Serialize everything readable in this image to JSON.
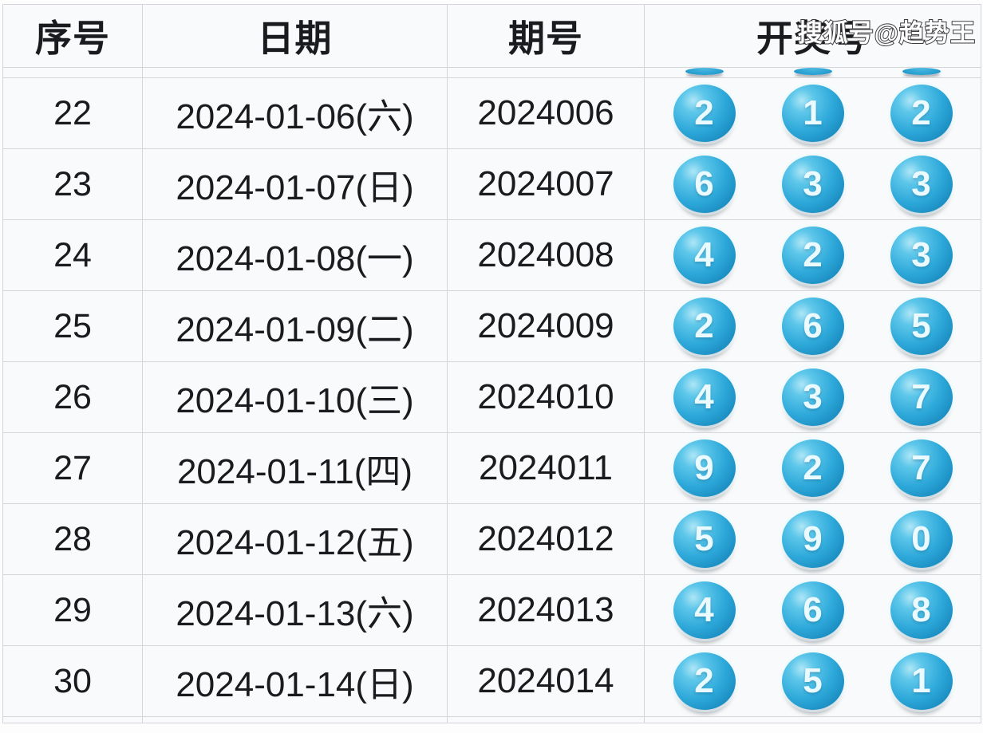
{
  "watermark": "搜狐号@趋势王",
  "table": {
    "columns": [
      "序号",
      "日期",
      "期号",
      "开奖号"
    ],
    "rows": [
      {
        "seq": "22",
        "date": "2024-01-06(六)",
        "period": "2024006",
        "balls": [
          "2",
          "1",
          "2"
        ]
      },
      {
        "seq": "23",
        "date": "2024-01-07(日)",
        "period": "2024007",
        "balls": [
          "6",
          "3",
          "3"
        ]
      },
      {
        "seq": "24",
        "date": "2024-01-08(一)",
        "period": "2024008",
        "balls": [
          "4",
          "2",
          "3"
        ]
      },
      {
        "seq": "25",
        "date": "2024-01-09(二)",
        "period": "2024009",
        "balls": [
          "2",
          "6",
          "5"
        ]
      },
      {
        "seq": "26",
        "date": "2024-01-10(三)",
        "period": "2024010",
        "balls": [
          "4",
          "3",
          "7"
        ]
      },
      {
        "seq": "27",
        "date": "2024-01-11(四)",
        "period": "2024011",
        "balls": [
          "9",
          "2",
          "7"
        ]
      },
      {
        "seq": "28",
        "date": "2024-01-12(五)",
        "period": "2024012",
        "balls": [
          "5",
          "9",
          "0"
        ]
      },
      {
        "seq": "29",
        "date": "2024-01-13(六)",
        "period": "2024013",
        "balls": [
          "4",
          "6",
          "8"
        ]
      },
      {
        "seq": "30",
        "date": "2024-01-14(日)",
        "period": "2024014",
        "balls": [
          "2",
          "5",
          "1"
        ]
      }
    ],
    "partial_top_ball_slivers": 3
  },
  "colors": {
    "ball_main": "#2ea9da",
    "ball_highlight": "#aee6f6",
    "ball_dark_rim": "#1180b4",
    "ball_number": "#ebfaff",
    "cell_background": "#f9fafb",
    "border": "#d4d6da",
    "text": "#1a1b1e",
    "watermark_fill": "#ffffff",
    "watermark_outline": "#3d3d40"
  }
}
